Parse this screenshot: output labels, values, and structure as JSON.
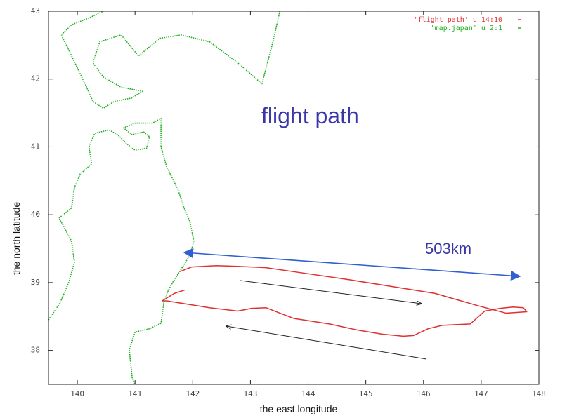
{
  "chart_data": {
    "type": "line",
    "annotations": [
      "flight path",
      "503km"
    ],
    "x_label": "the east longitude",
    "y_label": "the north latitude",
    "xlim": [
      139.5,
      148
    ],
    "ylim": [
      37.5,
      43
    ],
    "xticks": [
      140,
      141,
      142,
      143,
      144,
      145,
      146,
      147,
      148
    ],
    "yticks": [
      38,
      39,
      40,
      41,
      42,
      43
    ],
    "grid": false,
    "legend": "top-right",
    "series": [
      {
        "name": "'flight path' u 14:10",
        "color": "#e03030",
        "x": [
          141.77,
          141.98,
          142.41,
          142.78,
          143.27,
          143.76,
          144.73,
          145.47,
          146.2,
          146.94,
          147.43,
          147.79,
          147.73,
          147.55,
          147.33,
          147.06,
          146.81,
          146.32,
          146.08,
          145.83,
          145.65,
          145.28,
          144.86,
          144.37,
          143.76,
          143.51,
          143.27,
          143.02,
          142.78,
          142.29,
          141.92,
          141.55,
          141.47,
          141.68,
          141.86
        ],
        "values": [
          39.16,
          39.23,
          39.25,
          39.24,
          39.22,
          39.16,
          39.04,
          38.94,
          38.84,
          38.66,
          38.55,
          38.57,
          38.63,
          38.64,
          38.62,
          38.58,
          38.39,
          38.37,
          38.32,
          38.22,
          38.21,
          38.24,
          38.3,
          38.39,
          38.47,
          38.55,
          38.63,
          38.62,
          38.58,
          38.63,
          38.68,
          38.73,
          38.73,
          38.84,
          38.89
        ]
      },
      {
        "name": "'map.japan' u 2:1",
        "color": "#22b022",
        "x": [
          143.51,
          143.39,
          143.2,
          142.78,
          142.29,
          141.8,
          141.43,
          141.06,
          140.76,
          140.39,
          140.27,
          140.45,
          140.76,
          141.13,
          140.94,
          140.64,
          140.45,
          140.27,
          140.15,
          140.02,
          139.84,
          139.72,
          139.9,
          140.2,
          140.45,
          null,
          139.5,
          139.7,
          139.85,
          139.95,
          139.9,
          139.75,
          139.68,
          139.9,
          139.95,
          140.05,
          140.25,
          140.2,
          140.3,
          140.55,
          140.7,
          140.85,
          141.0,
          141.2,
          141.25,
          141.15,
          140.95,
          140.8,
          141.0,
          141.3,
          141.45,
          141.45,
          141.55,
          141.74,
          141.85,
          141.95,
          142.02,
          141.95,
          141.8,
          141.65,
          141.55,
          141.5,
          141.45,
          141.25,
          141.0,
          140.9,
          140.95,
          141.0
        ],
        "values": [
          43.0,
          42.55,
          41.93,
          42.24,
          42.55,
          42.65,
          42.6,
          42.34,
          42.65,
          42.55,
          42.24,
          42.03,
          41.88,
          41.82,
          41.72,
          41.67,
          41.57,
          41.67,
          41.9,
          42.13,
          42.45,
          42.65,
          42.8,
          42.9,
          43.0,
          null,
          38.45,
          38.7,
          39.0,
          39.3,
          39.61,
          39.85,
          39.95,
          40.1,
          40.4,
          40.6,
          40.75,
          41.0,
          41.2,
          41.25,
          41.18,
          41.05,
          40.95,
          40.98,
          41.15,
          41.22,
          41.18,
          41.28,
          41.35,
          41.35,
          41.42,
          41.0,
          40.7,
          40.38,
          40.1,
          39.9,
          39.61,
          39.4,
          39.2,
          39.0,
          38.84,
          38.7,
          38.4,
          38.32,
          38.27,
          38.01,
          37.6,
          37.5
        ]
      }
    ]
  }
}
